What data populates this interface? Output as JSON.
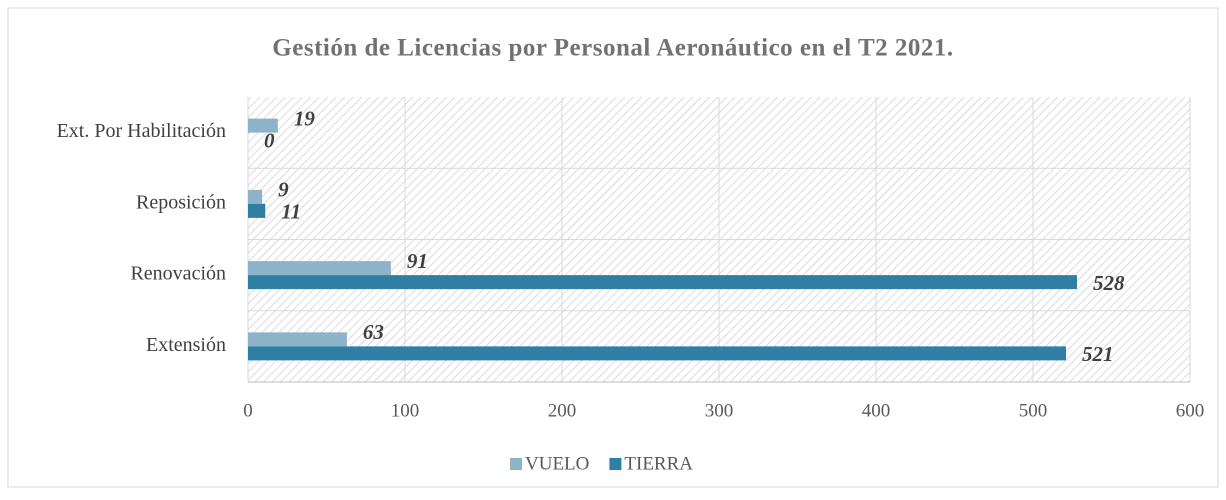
{
  "chart_data": {
    "type": "bar",
    "orientation": "horizontal",
    "title": "Gestión de Licencias por Personal Aeronáutico en el T2 2021.",
    "categories": [
      "Ext. Por Habilitación",
      "Reposición",
      "Renovación",
      "Extensión"
    ],
    "series": [
      {
        "name": "VUELO",
        "color": "#8db3c9",
        "values": [
          19,
          9,
          91,
          63
        ]
      },
      {
        "name": "TIERRA",
        "color": "#2e7fa3",
        "values": [
          0,
          11,
          528,
          521
        ]
      }
    ],
    "xlim": [
      0,
      600
    ],
    "xticks": [
      0,
      100,
      200,
      300,
      400,
      500,
      600
    ],
    "grid": true,
    "legend": "bottom"
  }
}
